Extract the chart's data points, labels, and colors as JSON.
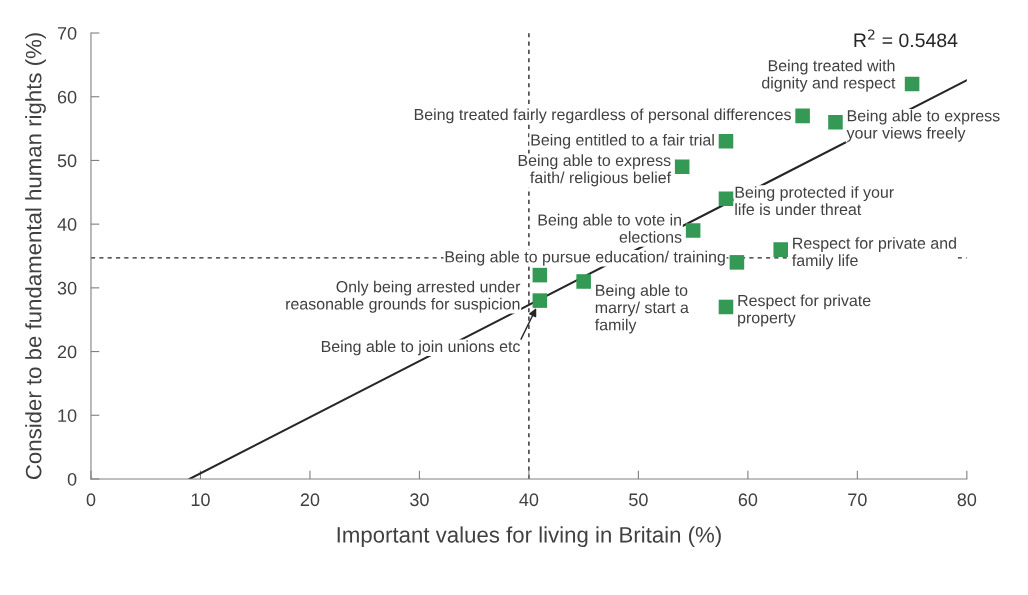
{
  "chart_data": {
    "type": "scatter",
    "xlabel": "Important values for living in Britain (%)",
    "ylabel": "Consider to be fundamental human rights (%)",
    "xlim": [
      0,
      80
    ],
    "ylim": [
      0,
      70
    ],
    "xticks": [
      0,
      10,
      20,
      30,
      40,
      50,
      60,
      70,
      80
    ],
    "yticks": [
      0,
      10,
      20,
      30,
      40,
      50,
      60,
      70
    ],
    "grid": false,
    "legend": false,
    "series": [
      {
        "color": "#339955",
        "marker": "square",
        "x": [
          75,
          65,
          68,
          58,
          54,
          58,
          55,
          63,
          59,
          41,
          45,
          41,
          58
        ],
        "values": [
          62,
          57,
          56,
          53,
          49,
          44,
          39,
          36,
          34,
          32,
          31,
          28,
          27
        ]
      },
      {
        "type": "line",
        "marker": "none",
        "color": "#262626",
        "x": [
          9,
          80
        ],
        "values": [
          0,
          62.6
        ]
      }
    ],
    "ref_lines": [
      {
        "axis": "x",
        "value": 40,
        "color": "#262626",
        "line_style": "dashed"
      },
      {
        "axis": "y",
        "value": 34.7,
        "color": "#262626",
        "line_style": "dashed"
      }
    ],
    "annotations": [
      {
        "text": "Being treated with\ndignity and respect",
        "x": 75,
        "y": 62
      },
      {
        "text": "Being treated fairly regardless of personal differences",
        "x": 65,
        "y": 57
      },
      {
        "text": "Being able to express\nyour views freely",
        "x": 68,
        "y": 56
      },
      {
        "text": "Being entitled to a fair trial",
        "x": 58,
        "y": 53
      },
      {
        "text": "Being able to express\nfaith/ religious belief",
        "x": 54,
        "y": 49
      },
      {
        "text": "Being protected if your\nlife is under threat",
        "x": 58,
        "y": 44
      },
      {
        "text": "Being able to vote in\nelections",
        "x": 55,
        "y": 39
      },
      {
        "text": "Respect for private and\nfamily life",
        "x": 63,
        "y": 36
      },
      {
        "text": "Being able to pursue education/ training",
        "x": 59,
        "y": 34
      },
      {
        "text": "Only being arrested under\nreasonable grounds for suspicion",
        "x": 41,
        "y": 32
      },
      {
        "text": "Being able to\nmarry/ start a\nfamily",
        "x": 45,
        "y": 31
      },
      {
        "text": "Being able to join unions etc",
        "x": 41,
        "y": 28
      },
      {
        "text": "Respect for private\nproperty",
        "x": 58,
        "y": 27
      },
      "R$^{2}$ = 0.5484"
    ]
  }
}
